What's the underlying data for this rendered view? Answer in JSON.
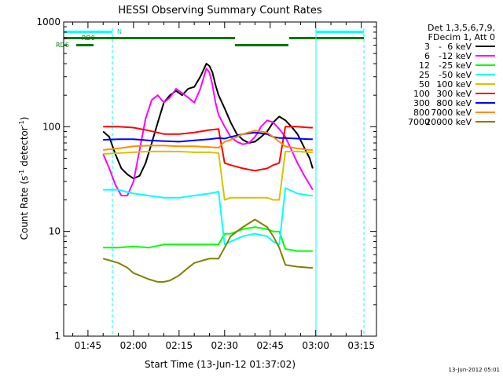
{
  "chart_data": {
    "type": "line",
    "title": "HESSI Observing Summary Count Rates",
    "xlabel": "Start Time (13-Jun-12 01:37:02)",
    "ylabel": "Count Rate (s",
    "ylabel_sup1": "-1",
    "ylabel_mid": " detector",
    "ylabel_sup2": "-1",
    "ylabel_end": ")",
    "yscale": "log",
    "ylim": [
      1,
      1000
    ],
    "xlim_min": [
      97,
      200
    ],
    "x_tick_labels": [
      "01:45",
      "02:00",
      "02:15",
      "02:30",
      "02:45",
      "03:00",
      "03:15"
    ],
    "x_tick_min": [
      105,
      120,
      135,
      150,
      165,
      180,
      195
    ],
    "y_tick_labels": [
      "1",
      "10",
      "100",
      "1000"
    ],
    "y_tick_values": [
      1,
      10,
      100,
      1000
    ],
    "footer_date": "13-Jun-2012 05:01",
    "legend_header": [
      "Det 1,3,5,6,7,9,",
      "FDecim 1, Att 0"
    ],
    "series": [
      {
        "name": "3 - 6 keV",
        "color": "#000000",
        "x": [
          110,
          112,
          114,
          116,
          118,
          120,
          122,
          124,
          126,
          128,
          130,
          132,
          134,
          136,
          138,
          140,
          142,
          144,
          145,
          146,
          147,
          148,
          150,
          152,
          154,
          156,
          158,
          160,
          162,
          164,
          166,
          168,
          170,
          172,
          174,
          176,
          178,
          179
        ],
        "y": [
          90,
          80,
          55,
          40,
          35,
          32,
          34,
          45,
          70,
          110,
          170,
          200,
          220,
          200,
          230,
          240,
          300,
          400,
          380,
          330,
          250,
          200,
          150,
          110,
          85,
          75,
          70,
          72,
          80,
          90,
          110,
          125,
          115,
          100,
          85,
          65,
          50,
          40
        ]
      },
      {
        "name": "6 - 12 keV",
        "color": "#ff00ff",
        "x": [
          110,
          112,
          114,
          116,
          118,
          120,
          122,
          124,
          126,
          128,
          130,
          132,
          134,
          136,
          138,
          140,
          142,
          144,
          145,
          146,
          147,
          148,
          150,
          152,
          154,
          156,
          158,
          160,
          162,
          164,
          166,
          168,
          170,
          172,
          174,
          176,
          178,
          179
        ],
        "y": [
          55,
          40,
          28,
          22,
          22,
          30,
          60,
          120,
          180,
          200,
          170,
          190,
          230,
          210,
          190,
          170,
          230,
          360,
          330,
          250,
          170,
          130,
          100,
          80,
          72,
          68,
          70,
          80,
          100,
          115,
          110,
          95,
          80,
          60,
          45,
          35,
          28,
          25
        ]
      },
      {
        "name": "12 - 25 keV",
        "color": "#00ff00",
        "x": [
          110,
          115,
          120,
          125,
          130,
          135,
          140,
          145,
          148,
          150,
          152,
          156,
          160,
          164,
          166,
          168,
          170,
          174,
          178,
          179
        ],
        "y": [
          7,
          7,
          7.2,
          7,
          7.5,
          7.5,
          7.5,
          7.5,
          7.5,
          9.5,
          9.5,
          10.5,
          11,
          10.5,
          10,
          10,
          6.8,
          6.5,
          6.5,
          6.5
        ]
      },
      {
        "name": "25 - 50 keV",
        "color": "#00ffff",
        "x": [
          110,
          115,
          120,
          125,
          130,
          135,
          140,
          145,
          148,
          150,
          152,
          156,
          160,
          164,
          166,
          168,
          170,
          174,
          178,
          179
        ],
        "y": [
          25,
          25,
          23,
          22,
          21,
          21,
          22,
          23,
          24,
          7.5,
          8,
          9,
          9.5,
          9,
          8,
          7.5,
          26,
          23,
          22,
          22
        ]
      },
      {
        "name": "50 - 100 keV",
        "color": "#d4c400",
        "x": [
          110,
          115,
          120,
          125,
          130,
          135,
          140,
          145,
          148,
          150,
          152,
          156,
          160,
          164,
          166,
          168,
          170,
          174,
          178,
          179
        ],
        "y": [
          55,
          56,
          57,
          58,
          58,
          58,
          57,
          57,
          56,
          20,
          21,
          21,
          21,
          21,
          20,
          20,
          58,
          58,
          57,
          57
        ]
      },
      {
        "name": "100 - 300 keV",
        "color": "#ff0000",
        "x": [
          110,
          115,
          120,
          125,
          130,
          135,
          140,
          145,
          148,
          150,
          152,
          156,
          160,
          164,
          166,
          168,
          170,
          174,
          178,
          179
        ],
        "y": [
          100,
          100,
          98,
          92,
          85,
          85,
          88,
          93,
          95,
          45,
          43,
          40,
          38,
          40,
          43,
          45,
          100,
          100,
          98,
          98
        ]
      },
      {
        "name": "300 - 800 keV",
        "color": "#0000ff",
        "x": [
          110,
          115,
          120,
          125,
          130,
          135,
          140,
          145,
          148,
          150,
          152,
          156,
          160,
          164,
          166,
          168,
          170,
          174,
          178,
          179
        ],
        "y": [
          75,
          76,
          76,
          74,
          73,
          72,
          74,
          76,
          78,
          77,
          80,
          85,
          88,
          85,
          80,
          78,
          78,
          77,
          76,
          76
        ]
      },
      {
        "name": "800 - 7000 keV",
        "color": "#ff8c00",
        "x": [
          110,
          115,
          120,
          125,
          130,
          135,
          140,
          145,
          148,
          150,
          152,
          156,
          160,
          164,
          166,
          168,
          170,
          174,
          178,
          179
        ],
        "y": [
          60,
          62,
          65,
          66,
          66,
          65,
          65,
          64,
          63,
          72,
          75,
          85,
          92,
          88,
          80,
          72,
          65,
          62,
          60,
          60
        ]
      },
      {
        "name": "7000 - 20000 keV",
        "color": "#808000",
        "x": [
          110,
          112,
          115,
          118,
          120,
          122,
          125,
          128,
          130,
          132,
          135,
          138,
          140,
          143,
          145,
          148,
          150,
          152,
          156,
          160,
          164,
          166,
          168,
          170,
          174,
          178,
          179
        ],
        "y": [
          5.5,
          5.3,
          5,
          4.5,
          4,
          3.8,
          3.5,
          3.3,
          3.3,
          3.4,
          3.8,
          4.5,
          5,
          5.3,
          5.5,
          5.5,
          7,
          9,
          11,
          13,
          11,
          9,
          7,
          4.8,
          4.6,
          4.5,
          4.5
        ]
      }
    ]
  }
}
